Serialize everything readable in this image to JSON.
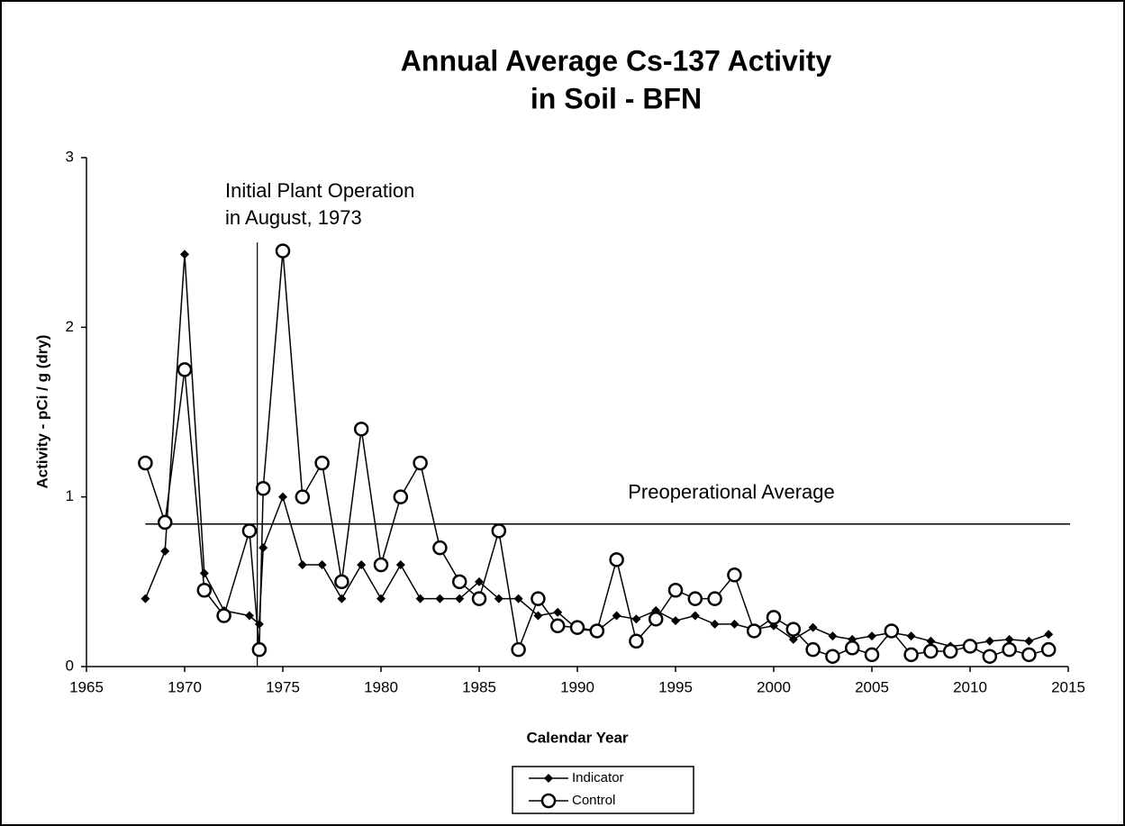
{
  "chart_data": {
    "type": "line",
    "title": [
      "Annual Average Cs-137 Activity",
      "in Soil - BFN"
    ],
    "x_label": "Calendar Year",
    "y_label": "Activity - pCi / g (dry)",
    "xlim": [
      1965,
      2015
    ],
    "xticks": [
      1965,
      1970,
      1975,
      1980,
      1985,
      1990,
      1995,
      2000,
      2005,
      2010,
      2015
    ],
    "ylim": [
      0,
      3
    ],
    "yticks": [
      0,
      1,
      2,
      3
    ],
    "x": [
      1968,
      1969,
      1970,
      1971,
      1972,
      1973.3,
      1973.8,
      1974,
      1975,
      1976,
      1977,
      1978,
      1979,
      1980,
      1981,
      1982,
      1983,
      1984,
      1985,
      1986,
      1987,
      1988,
      1989,
      1990,
      1991,
      1992,
      1993,
      1994,
      1995,
      1996,
      1997,
      1998,
      1999,
      2000,
      2001,
      2002,
      2003,
      2004,
      2005,
      2006,
      2007,
      2008,
      2009,
      2010,
      2011,
      2012,
      2013,
      2014
    ],
    "series": [
      {
        "name": "Indicator",
        "color": "#000000",
        "marker": "diamond",
        "values": [
          0.4,
          0.68,
          2.43,
          0.55,
          0.33,
          0.3,
          0.25,
          0.7,
          1.0,
          0.6,
          0.6,
          0.4,
          0.6,
          0.4,
          0.6,
          0.4,
          0.4,
          0.4,
          0.5,
          0.4,
          0.4,
          0.3,
          0.32,
          0.22,
          0.21,
          0.3,
          0.28,
          0.33,
          0.27,
          0.3,
          0.25,
          0.25,
          0.22,
          0.24,
          0.16,
          0.23,
          0.18,
          0.16,
          0.18,
          0.2,
          0.18,
          0.15,
          0.12,
          0.13,
          0.15,
          0.16,
          0.15,
          0.19
        ]
      },
      {
        "name": "Control",
        "color": "#000000",
        "marker": "circle",
        "values": [
          1.2,
          0.85,
          1.75,
          0.45,
          0.3,
          0.8,
          0.1,
          1.05,
          2.45,
          1.0,
          1.2,
          0.5,
          1.4,
          0.6,
          1.0,
          1.2,
          0.7,
          0.5,
          0.4,
          0.8,
          0.1,
          0.4,
          0.24,
          0.23,
          0.21,
          0.63,
          0.15,
          0.28,
          0.45,
          0.4,
          0.4,
          0.54,
          0.21,
          0.29,
          0.22,
          0.1,
          0.06,
          0.11,
          0.07,
          0.21,
          0.07,
          0.09,
          0.09,
          0.12,
          0.06,
          0.1,
          0.07,
          0.1
        ]
      }
    ],
    "reference_line": {
      "label": "Preoperational Average",
      "value": 0.84
    },
    "event_line": {
      "label": [
        "Initial Plant Operation",
        "in August, 1973"
      ],
      "x": 1973.7
    },
    "legend": "bottom"
  }
}
